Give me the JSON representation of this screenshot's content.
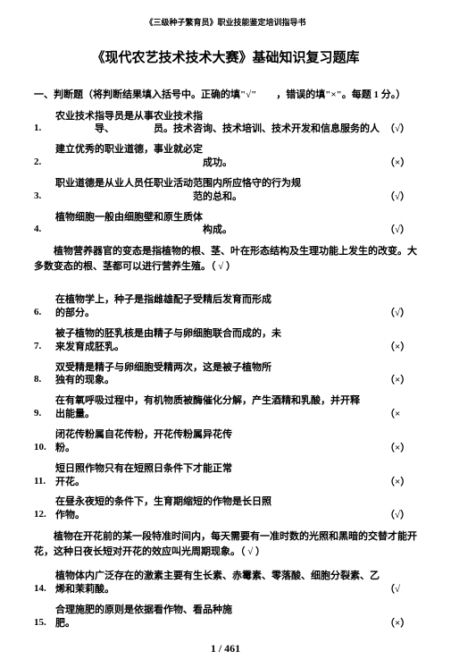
{
  "header": "《三级种子繁育员》职业技能鉴定培训指导书",
  "title": "《现代农艺技术技术大赛》基础知识复习题库",
  "section_head": "一、判断题（将判断结果填入括号中。正确的填\"√\"　　，错误的填\"×\"。每题 1 分。）",
  "q1": {
    "num": "1.",
    "line1": "农业技术指导员是从事农业技术指",
    "line1_r": "技术咨询、技术培训、技术开发和信息服务的人",
    "line2": "导、",
    "line2_r": "员。",
    "ans": "（√）"
  },
  "q2": {
    "num": "2.",
    "line1": "建立优秀的职业道德，事业就必定",
    "line2": "成功。",
    "ans": "（×）"
  },
  "q3": {
    "num": "3.",
    "line1": "职业道德是从业人员任职业活动范围内所应恪守的行为规",
    "line2": "范的总和。",
    "ans": "（√）"
  },
  "q4": {
    "num": "4.",
    "line1": "植物细胞一般由细胞壁和原生质体",
    "line2": "构成。",
    "ans": "（√）"
  },
  "para5": "植物营养器官的变态是指植物的根、茎、叶在形态结构及生理功能上发生的改变。大多数变态的根、茎都可以进行营养生殖。（ √ ）",
  "q6": {
    "num": "6.",
    "line1": "在植物学上，种子是指雌雄配子受精后发育而形成",
    "line2": "的部分。",
    "ans": "（√）"
  },
  "q7": {
    "num": "7.",
    "line1": "被子植物的胚乳核是由精子与卵细胞联合而成的，未",
    "line2": "来发育成胚乳。",
    "ans": "（×）"
  },
  "q8": {
    "num": "8.",
    "line1": "双受精是精子与卵细胞受精两次，这是被子植物所",
    "line2": "独有的现象。",
    "ans": "（×）"
  },
  "q9": {
    "num": "9.",
    "line1": "在有氧呼吸过程中，有机物质被酶催化分解，产生酒精和乳酸，并开释",
    "line2": "出能量。",
    "ans": "（×"
  },
  "q10": {
    "num": "10.",
    "line1": "闭花传粉属自花传粉，开花传粉属异花传",
    "line2": "粉。",
    "ans": "（×）"
  },
  "q11": {
    "num": "11.",
    "line1": "短日照作物只有在短照日条件下才能正常",
    "line2": "开花。",
    "ans": "（×）"
  },
  "q12": {
    "num": "12.",
    "line1": "在昼永夜短的条件下，生育期缩短的作物是长日照",
    "line2": "作物。",
    "ans": "（√）"
  },
  "para13": "植物在开花前的某一段特准时间内，每天需要有一准时数的光照和黑暗的交替才能开花，这种日夜长短对开花的效应叫光周期现象。（ √ ）",
  "q14": {
    "num": "14.",
    "line1": "植物体内广泛存在的激素主要有生长素、赤霉素、零落酸、细胞分裂素、乙",
    "line2": "烯和茉莉酸。",
    "ans": "（√"
  },
  "q15": {
    "num": "15.",
    "line1": "合理施肥的原则是依据看作物、看品种施",
    "line2": "肥。",
    "ans": "（×）"
  },
  "pagenum": "1 / 461"
}
